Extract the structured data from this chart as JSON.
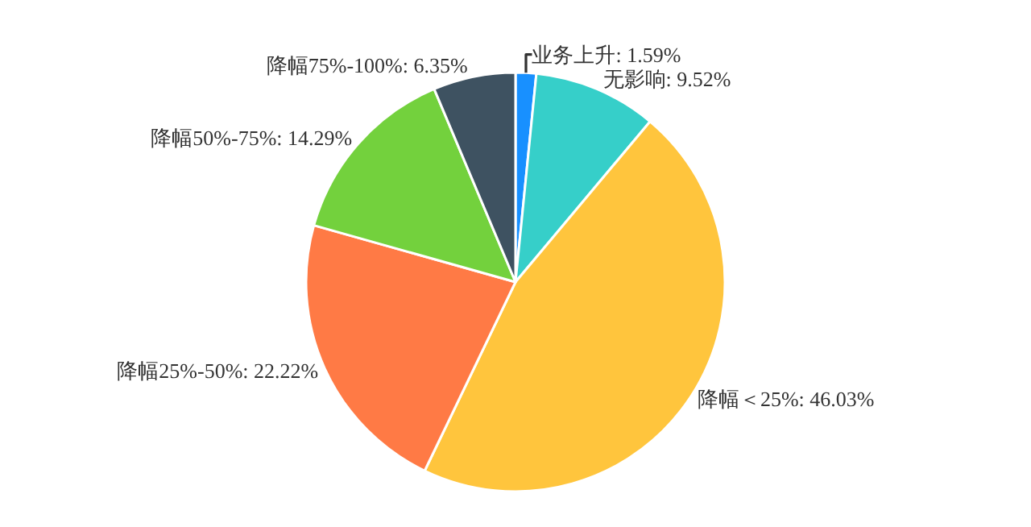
{
  "chart_data": {
    "type": "pie",
    "categories": [
      "业务上升",
      "无影响",
      "降幅＜25%",
      "降幅25%-50%",
      "降幅50%-75%",
      "降幅75%-100%"
    ],
    "values": [
      1.59,
      9.52,
      46.03,
      22.22,
      14.29,
      6.35
    ],
    "value_labels": [
      "1.59%",
      "9.52%",
      "46.03%",
      "22.22%",
      "14.29%",
      "6.35%"
    ],
    "colors": [
      "#1890ff",
      "#36cfc9",
      "#ffc53d",
      "#ff7a45",
      "#73d13d",
      "#3e5261"
    ],
    "legend": false
  }
}
